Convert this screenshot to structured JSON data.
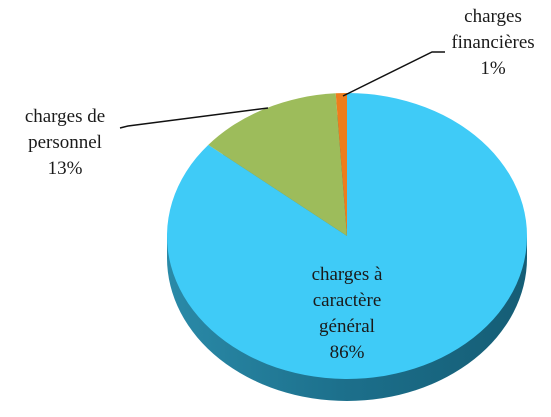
{
  "chart_data": {
    "type": "pie",
    "categories": [
      "charges à caractère général",
      "charges de personnel",
      "charges financières"
    ],
    "values": [
      86,
      13,
      1
    ],
    "value_labels": [
      "86%",
      "13%",
      "1%"
    ],
    "colors": [
      "#3fcbf7",
      "#9dbc5b",
      "#ee7d1c"
    ]
  }
}
